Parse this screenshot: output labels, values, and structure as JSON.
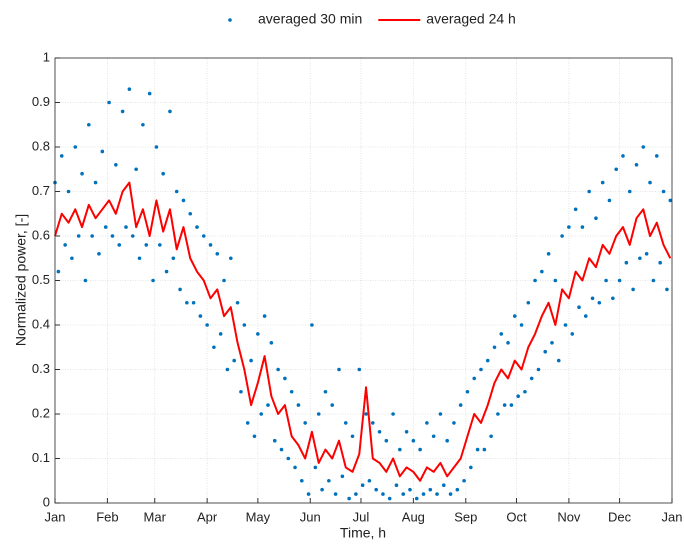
{
  "chart_data": {
    "type": "scatter",
    "xlabel": "Time, h",
    "ylabel": "Normalized power, [-]",
    "xlim": [
      0,
      8760
    ],
    "ylim": [
      0,
      1
    ],
    "xticks": [
      {
        "value": 0,
        "label": "Jan"
      },
      {
        "value": 744,
        "label": "Feb"
      },
      {
        "value": 1416,
        "label": "Mar"
      },
      {
        "value": 2160,
        "label": "Apr"
      },
      {
        "value": 2880,
        "label": "May"
      },
      {
        "value": 3624,
        "label": "Jun"
      },
      {
        "value": 4344,
        "label": "Jul"
      },
      {
        "value": 5088,
        "label": "Aug"
      },
      {
        "value": 5832,
        "label": "Sep"
      },
      {
        "value": 6552,
        "label": "Oct"
      },
      {
        "value": 7296,
        "label": "Nov"
      },
      {
        "value": 8016,
        "label": "Dec"
      },
      {
        "value": 8760,
        "label": "Jan"
      }
    ],
    "yticks": [
      0,
      0.1,
      0.2,
      0.3,
      0.4,
      0.5,
      0.6,
      0.7,
      0.8,
      0.9,
      1
    ],
    "grid": true,
    "legend": "top",
    "series": [
      {
        "name": "averaged 30 min",
        "type": "scatter",
        "color": "#0072bd",
        "x": [
          0,
          48,
          96,
          144,
          192,
          240,
          288,
          336,
          384,
          432,
          480,
          528,
          576,
          624,
          672,
          720,
          768,
          816,
          864,
          912,
          960,
          1008,
          1056,
          1104,
          1152,
          1200,
          1248,
          1296,
          1344,
          1392,
          1440,
          1488,
          1536,
          1584,
          1632,
          1680,
          1728,
          1776,
          1824,
          1872,
          1920,
          1968,
          2016,
          2064,
          2112,
          2160,
          2208,
          2256,
          2304,
          2352,
          2400,
          2448,
          2496,
          2544,
          2592,
          2640,
          2688,
          2736,
          2784,
          2832,
          2880,
          2928,
          2976,
          3024,
          3072,
          3120,
          3168,
          3216,
          3264,
          3312,
          3360,
          3408,
          3456,
          3504,
          3552,
          3600,
          3648,
          3696,
          3744,
          3792,
          3840,
          3888,
          3936,
          3984,
          4032,
          4080,
          4128,
          4176,
          4224,
          4272,
          4320,
          4368,
          4416,
          4464,
          4512,
          4560,
          4608,
          4656,
          4704,
          4752,
          4800,
          4848,
          4896,
          4944,
          4992,
          5040,
          5088,
          5136,
          5184,
          5232,
          5280,
          5328,
          5376,
          5424,
          5472,
          5520,
          5568,
          5616,
          5664,
          5712,
          5760,
          5808,
          5856,
          5904,
          5952,
          6000,
          6048,
          6096,
          6144,
          6192,
          6240,
          6288,
          6336,
          6384,
          6432,
          6480,
          6528,
          6576,
          6624,
          6672,
          6720,
          6768,
          6816,
          6864,
          6912,
          6960,
          7008,
          7056,
          7104,
          7152,
          7200,
          7248,
          7296,
          7344,
          7392,
          7440,
          7488,
          7536,
          7584,
          7632,
          7680,
          7728,
          7776,
          7824,
          7872,
          7920,
          7968,
          8016,
          8064,
          8112,
          8160,
          8208,
          8256,
          8304,
          8352,
          8400,
          8448,
          8496,
          8544,
          8592,
          8640,
          8688,
          8736
        ],
        "values": [
          0.72,
          0.52,
          0.78,
          0.58,
          0.7,
          0.55,
          0.8,
          0.6,
          0.74,
          0.5,
          0.85,
          0.6,
          0.72,
          0.56,
          0.79,
          0.62,
          0.9,
          0.6,
          0.76,
          0.58,
          0.88,
          0.62,
          0.93,
          0.6,
          0.75,
          0.55,
          0.85,
          0.58,
          0.92,
          0.5,
          0.8,
          0.58,
          0.74,
          0.52,
          0.88,
          0.55,
          0.7,
          0.48,
          0.68,
          0.45,
          0.65,
          0.45,
          0.62,
          0.42,
          0.6,
          0.4,
          0.58,
          0.35,
          0.56,
          0.38,
          0.5,
          0.3,
          0.55,
          0.32,
          0.45,
          0.25,
          0.4,
          0.18,
          0.32,
          0.15,
          0.38,
          0.2,
          0.42,
          0.22,
          0.36,
          0.14,
          0.3,
          0.12,
          0.28,
          0.1,
          0.25,
          0.08,
          0.22,
          0.05,
          0.18,
          0.02,
          0.4,
          0.08,
          0.2,
          0.03,
          0.25,
          0.05,
          0.22,
          0.02,
          0.3,
          0.06,
          0.18,
          0.01,
          0.15,
          0.02,
          0.3,
          0.04,
          0.2,
          0.05,
          0.18,
          0.03,
          0.16,
          0.02,
          0.14,
          0.01,
          0.2,
          0.04,
          0.12,
          0.02,
          0.16,
          0.03,
          0.14,
          0.01,
          0.12,
          0.02,
          0.18,
          0.03,
          0.15,
          0.02,
          0.2,
          0.04,
          0.14,
          0.02,
          0.18,
          0.03,
          0.22,
          0.05,
          0.25,
          0.08,
          0.28,
          0.12,
          0.3,
          0.12,
          0.32,
          0.15,
          0.35,
          0.2,
          0.38,
          0.22,
          0.36,
          0.22,
          0.42,
          0.24,
          0.4,
          0.25,
          0.45,
          0.28,
          0.5,
          0.3,
          0.52,
          0.34,
          0.56,
          0.36,
          0.5,
          0.32,
          0.6,
          0.4,
          0.62,
          0.38,
          0.66,
          0.44,
          0.62,
          0.42,
          0.7,
          0.46,
          0.64,
          0.45,
          0.72,
          0.5,
          0.68,
          0.46,
          0.75,
          0.5,
          0.78,
          0.54,
          0.7,
          0.48,
          0.76,
          0.55,
          0.8,
          0.56,
          0.72,
          0.5,
          0.78,
          0.54,
          0.7,
          0.48,
          0.68
        ]
      },
      {
        "name": "averaged 24 h",
        "type": "line",
        "color": "#ff0000",
        "x": [
          0,
          96,
          192,
          288,
          384,
          480,
          576,
          672,
          768,
          864,
          960,
          1056,
          1152,
          1248,
          1344,
          1440,
          1536,
          1632,
          1728,
          1824,
          1920,
          2016,
          2112,
          2208,
          2304,
          2400,
          2496,
          2592,
          2688,
          2784,
          2880,
          2976,
          3072,
          3168,
          3264,
          3360,
          3456,
          3552,
          3648,
          3744,
          3840,
          3936,
          4032,
          4128,
          4224,
          4320,
          4416,
          4512,
          4608,
          4704,
          4800,
          4896,
          4992,
          5088,
          5184,
          5280,
          5376,
          5472,
          5568,
          5664,
          5760,
          5856,
          5952,
          6048,
          6144,
          6240,
          6336,
          6432,
          6528,
          6624,
          6720,
          6816,
          6912,
          7008,
          7104,
          7200,
          7296,
          7392,
          7488,
          7584,
          7680,
          7776,
          7872,
          7968,
          8064,
          8160,
          8256,
          8352,
          8448,
          8544,
          8640,
          8736
        ],
        "values": [
          0.6,
          0.65,
          0.63,
          0.66,
          0.62,
          0.67,
          0.64,
          0.66,
          0.68,
          0.65,
          0.7,
          0.72,
          0.62,
          0.66,
          0.6,
          0.68,
          0.61,
          0.66,
          0.57,
          0.62,
          0.55,
          0.52,
          0.5,
          0.46,
          0.48,
          0.42,
          0.44,
          0.36,
          0.3,
          0.22,
          0.27,
          0.33,
          0.24,
          0.2,
          0.22,
          0.15,
          0.13,
          0.1,
          0.16,
          0.09,
          0.12,
          0.1,
          0.14,
          0.08,
          0.07,
          0.11,
          0.26,
          0.1,
          0.09,
          0.07,
          0.1,
          0.06,
          0.08,
          0.07,
          0.05,
          0.08,
          0.07,
          0.09,
          0.06,
          0.08,
          0.1,
          0.15,
          0.2,
          0.18,
          0.22,
          0.27,
          0.3,
          0.28,
          0.32,
          0.3,
          0.35,
          0.38,
          0.42,
          0.45,
          0.4,
          0.48,
          0.46,
          0.52,
          0.5,
          0.55,
          0.53,
          0.58,
          0.56,
          0.6,
          0.62,
          0.58,
          0.64,
          0.66,
          0.6,
          0.63,
          0.58,
          0.55
        ]
      }
    ]
  }
}
